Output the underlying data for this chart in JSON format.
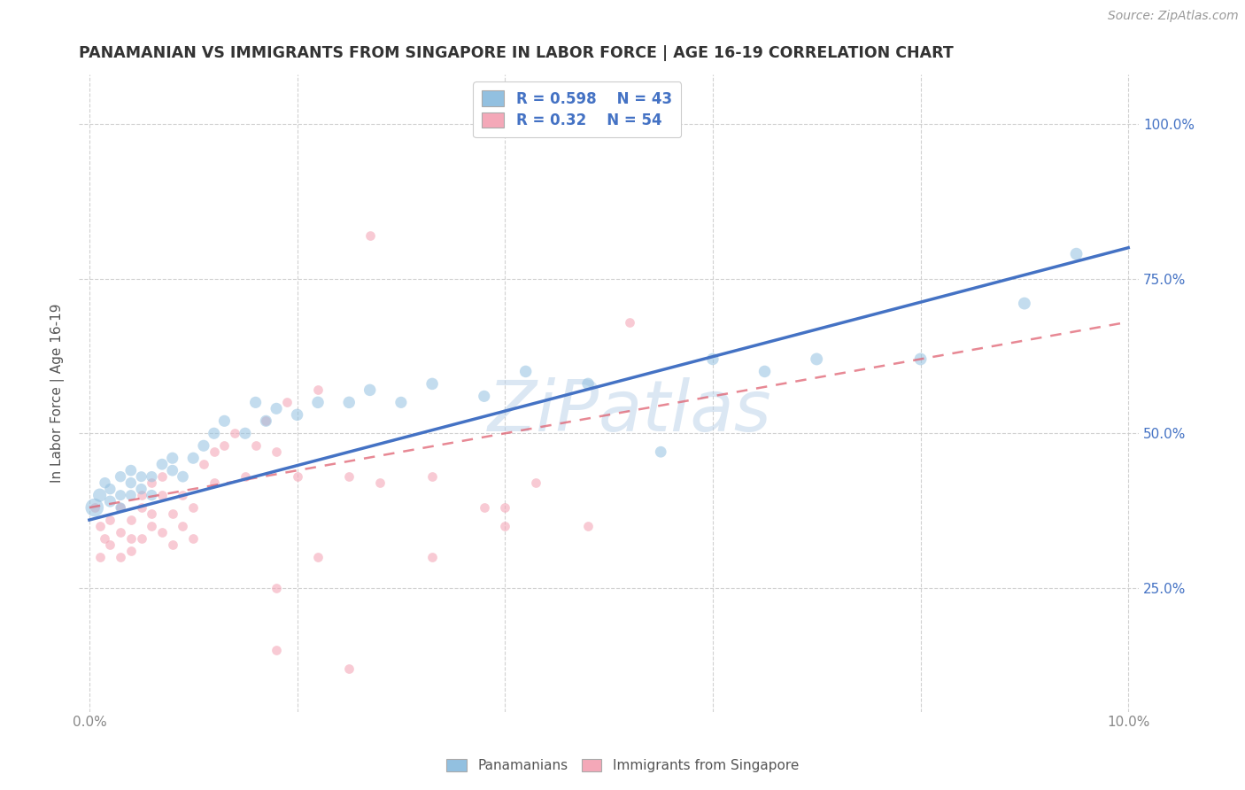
{
  "title": "PANAMANIAN VS IMMIGRANTS FROM SINGAPORE IN LABOR FORCE | AGE 16-19 CORRELATION CHART",
  "source": "Source: ZipAtlas.com",
  "ylabel": "In Labor Force | Age 16-19",
  "xlim": [
    -0.001,
    0.101
  ],
  "ylim": [
    0.05,
    1.08
  ],
  "xticks": [
    0.0,
    0.02,
    0.04,
    0.06,
    0.08,
    0.1
  ],
  "xticklabels": [
    "0.0%",
    "",
    "",
    "",
    "",
    "10.0%"
  ],
  "yticks": [
    0.25,
    0.5,
    0.75,
    1.0
  ],
  "yticklabels": [
    "25.0%",
    "50.0%",
    "75.0%",
    "100.0%"
  ],
  "blue_R": 0.598,
  "blue_N": 43,
  "pink_R": 0.32,
  "pink_N": 54,
  "blue_color": "#92C0E0",
  "pink_color": "#F4A8B8",
  "blue_label": "Panamanians",
  "pink_label": "Immigrants from Singapore",
  "watermark": "ZiPatlas",
  "background_color": "#ffffff",
  "grid_color": "#cccccc",
  "title_color": "#333333",
  "axis_label_color": "#555555",
  "tick_label_color_right": "#4472C4",
  "legend_R_color": "#4472C4",
  "blue_line_color": "#4472C4",
  "pink_line_color": "#E06070",
  "blue_scatter_x": [
    0.0005,
    0.001,
    0.0015,
    0.002,
    0.002,
    0.003,
    0.003,
    0.003,
    0.004,
    0.004,
    0.004,
    0.005,
    0.005,
    0.006,
    0.006,
    0.007,
    0.008,
    0.008,
    0.009,
    0.01,
    0.011,
    0.012,
    0.013,
    0.015,
    0.016,
    0.017,
    0.018,
    0.02,
    0.022,
    0.025,
    0.027,
    0.03,
    0.033,
    0.038,
    0.042,
    0.048,
    0.055,
    0.06,
    0.065,
    0.07,
    0.08,
    0.09,
    0.095
  ],
  "blue_scatter_y": [
    0.38,
    0.4,
    0.42,
    0.39,
    0.41,
    0.4,
    0.43,
    0.38,
    0.42,
    0.4,
    0.44,
    0.41,
    0.43,
    0.4,
    0.43,
    0.45,
    0.44,
    0.46,
    0.43,
    0.46,
    0.48,
    0.5,
    0.52,
    0.5,
    0.55,
    0.52,
    0.54,
    0.53,
    0.55,
    0.55,
    0.57,
    0.55,
    0.58,
    0.56,
    0.6,
    0.58,
    0.47,
    0.62,
    0.6,
    0.62,
    0.62,
    0.71,
    0.79
  ],
  "blue_scatter_size": [
    220,
    120,
    80,
    90,
    80,
    75,
    80,
    70,
    80,
    75,
    85,
    80,
    75,
    80,
    80,
    85,
    85,
    90,
    85,
    90,
    90,
    90,
    90,
    90,
    90,
    90,
    90,
    95,
    95,
    95,
    95,
    90,
    95,
    90,
    95,
    95,
    85,
    95,
    95,
    100,
    100,
    100,
    100
  ],
  "pink_scatter_x": [
    0.0005,
    0.001,
    0.001,
    0.0015,
    0.002,
    0.002,
    0.003,
    0.003,
    0.003,
    0.004,
    0.004,
    0.004,
    0.005,
    0.005,
    0.005,
    0.006,
    0.006,
    0.006,
    0.007,
    0.007,
    0.007,
    0.008,
    0.008,
    0.009,
    0.009,
    0.01,
    0.01,
    0.011,
    0.012,
    0.012,
    0.013,
    0.014,
    0.015,
    0.016,
    0.017,
    0.018,
    0.019,
    0.02,
    0.022,
    0.025,
    0.028,
    0.033,
    0.038,
    0.04,
    0.043,
    0.048,
    0.052,
    0.018,
    0.022,
    0.027,
    0.033,
    0.04,
    0.018,
    0.025
  ],
  "pink_scatter_y": [
    0.38,
    0.35,
    0.3,
    0.33,
    0.32,
    0.36,
    0.34,
    0.3,
    0.38,
    0.36,
    0.31,
    0.33,
    0.38,
    0.33,
    0.4,
    0.35,
    0.42,
    0.37,
    0.34,
    0.4,
    0.43,
    0.37,
    0.32,
    0.4,
    0.35,
    0.38,
    0.33,
    0.45,
    0.47,
    0.42,
    0.48,
    0.5,
    0.43,
    0.48,
    0.52,
    0.47,
    0.55,
    0.43,
    0.57,
    0.43,
    0.42,
    0.43,
    0.38,
    0.35,
    0.42,
    0.35,
    0.68,
    0.25,
    0.3,
    0.82,
    0.3,
    0.38,
    0.15,
    0.12
  ],
  "blue_line_x": [
    0.0,
    0.1
  ],
  "blue_line_y": [
    0.36,
    0.8
  ],
  "pink_line_x": [
    0.0,
    0.1
  ],
  "pink_line_y": [
    0.38,
    0.68
  ]
}
